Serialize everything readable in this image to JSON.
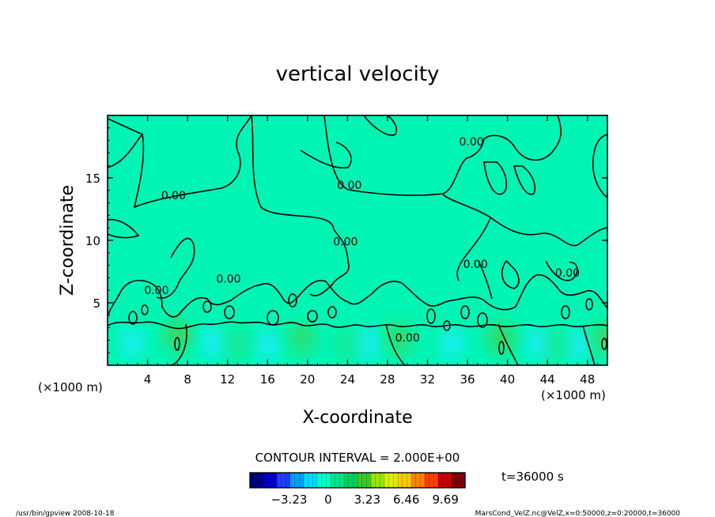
{
  "chart_data": {
    "type": "heatmap",
    "title": "vertical velocity",
    "xlabel": "X-coordinate",
    "ylabel": "Z-coordinate",
    "x_unit_left": "(×1000 m)",
    "x_unit_right": "(×1000 m)",
    "xlim": [
      0,
      50
    ],
    "ylim": [
      0,
      20
    ],
    "x_ticks": [
      "4",
      "8",
      "12",
      "16",
      "20",
      "24",
      "28",
      "32",
      "36",
      "40",
      "44",
      "48"
    ],
    "x_tick_values": [
      4,
      8,
      12,
      16,
      20,
      24,
      28,
      32,
      36,
      40,
      44,
      48
    ],
    "y_ticks": [
      "5",
      "10",
      "15"
    ],
    "y_tick_values": [
      5,
      10,
      15
    ],
    "contour_interval_text": "CONTOUR INTERVAL = 2.000E+00",
    "contour_labels": [
      {
        "text": "0.00",
        "x": 6.6,
        "z": 13.3
      },
      {
        "text": "0.00",
        "x": 24.2,
        "z": 14.1
      },
      {
        "text": "0.00",
        "x": 36.4,
        "z": 17.6
      },
      {
        "text": "0.00",
        "x": 23.8,
        "z": 9.6
      },
      {
        "text": "0.00",
        "x": 36.8,
        "z": 7.8
      },
      {
        "text": "0.00",
        "x": 12.1,
        "z": 6.6
      },
      {
        "text": "0.00",
        "x": 4.9,
        "z": 5.7
      },
      {
        "text": "0.00",
        "x": 46.0,
        "z": 7.1
      },
      {
        "text": "0.00",
        "x": 30.0,
        "z": 1.9
      }
    ],
    "colorbar": {
      "tick_labels": [
        "−3.23",
        "0",
        "3.23",
        "6.46",
        "9.69"
      ],
      "tick_values": [
        -3.23,
        0,
        3.23,
        6.46,
        9.69
      ],
      "min": -6.46,
      "max": 11.31,
      "colors": [
        "#000080",
        "#0000c8",
        "#1e3cff",
        "#00a0ff",
        "#00dcff",
        "#00ffc8",
        "#00e68c",
        "#00d25a",
        "#3cc828",
        "#96e600",
        "#dcf000",
        "#ffc800",
        "#ff8200",
        "#ff3c00",
        "#c80000",
        "#800000"
      ]
    },
    "time_label": "t=36000 s",
    "background_color": "#00f5b5",
    "updraft_color": "#3dd65a",
    "downdraft_color": "#1aedf0",
    "updrafts": [
      {
        "x": 7.0,
        "z": 2.4,
        "intensity": 0.9
      },
      {
        "x": 19.5,
        "z": 2.2,
        "intensity": 0.7
      },
      {
        "x": 29.2,
        "z": 2.2,
        "intensity": 0.75
      },
      {
        "x": 39.4,
        "z": 2.2,
        "intensity": 0.9
      },
      {
        "x": 49.8,
        "z": 2.2,
        "intensity": 0.8
      },
      {
        "x": 13.0,
        "z": 1.8,
        "intensity": 0.35
      },
      {
        "x": 24.0,
        "z": 1.6,
        "intensity": 0.3
      },
      {
        "x": 45.0,
        "z": 1.6,
        "intensity": 0.3
      }
    ],
    "downdrafts": [
      {
        "x": 2.5,
        "z": 1.8
      },
      {
        "x": 10.5,
        "z": 1.8
      },
      {
        "x": 16.0,
        "z": 1.6
      },
      {
        "x": 26.0,
        "z": 1.7
      },
      {
        "x": 34.5,
        "z": 1.7
      },
      {
        "x": 43.0,
        "z": 1.7
      },
      {
        "x": 47.0,
        "z": 1.6
      }
    ]
  },
  "footer": {
    "left": "/usr/bin/gpview   2008-10-18",
    "right": "MarsCond_VelZ.nc@VelZ,x=0:50000,z=0:20000,t=36000"
  }
}
